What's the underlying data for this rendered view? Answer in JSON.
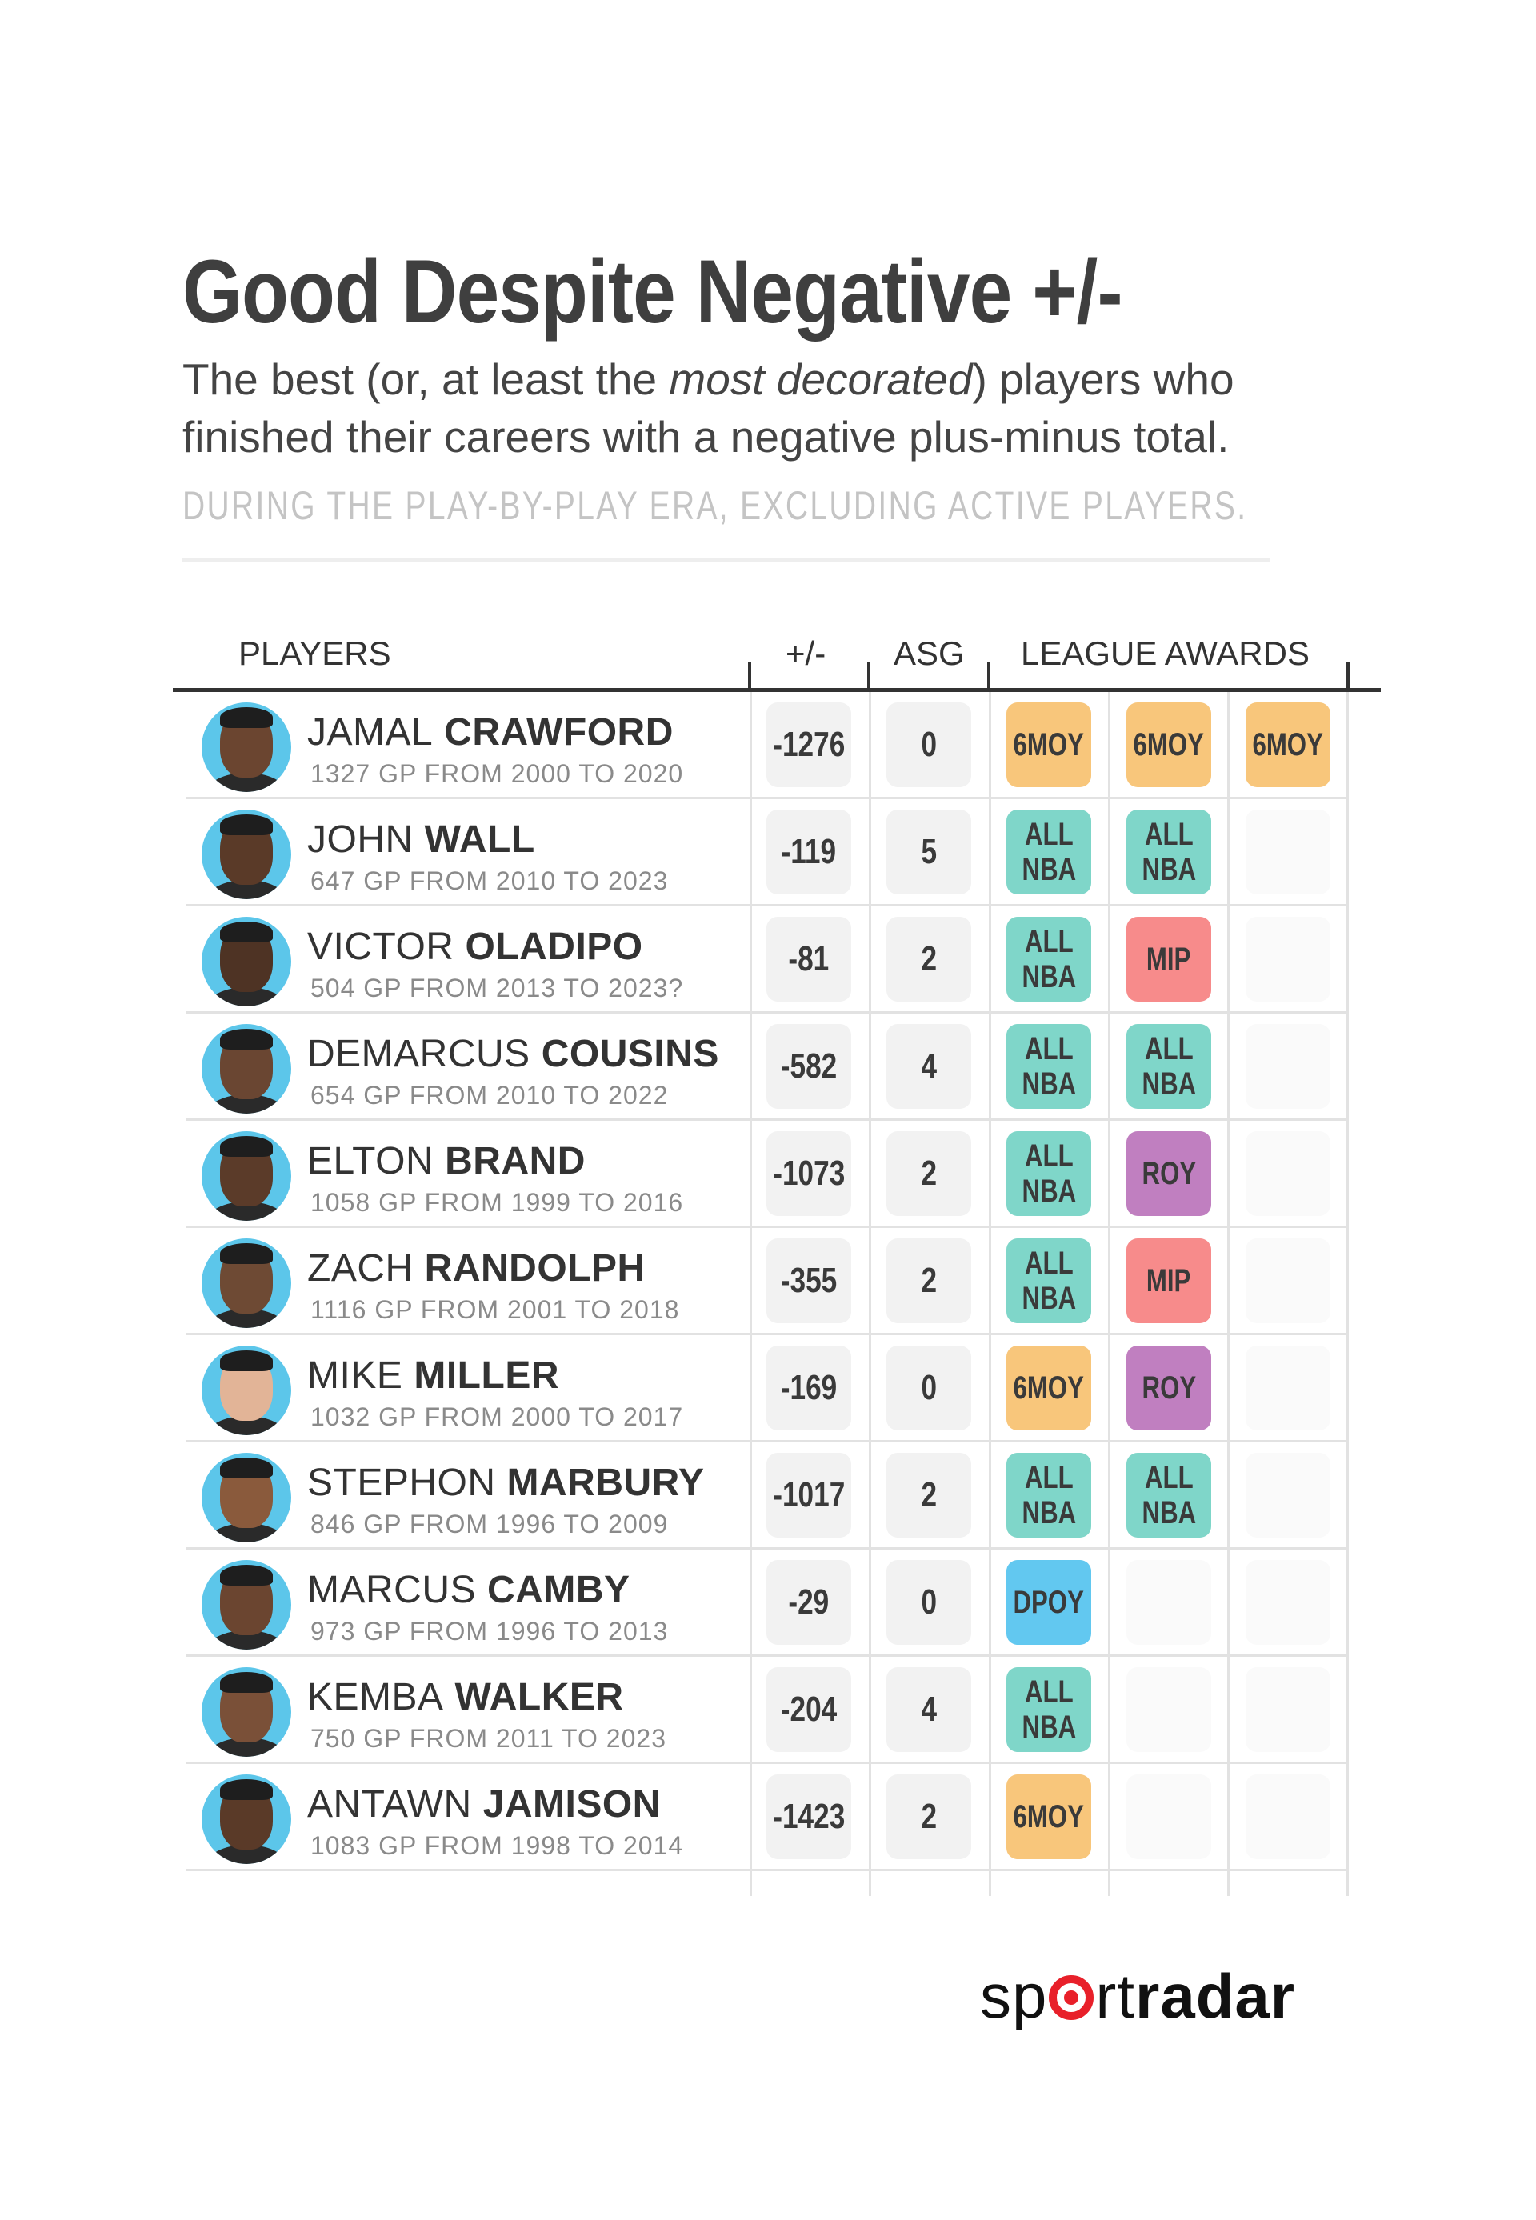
{
  "title": "Good Despite Negative +/-",
  "subtitle": {
    "before": "The best (or, at least the ",
    "emph": "most decorated",
    "after": ") players who finished their careers with a negative plus-minus total."
  },
  "note": "DURING THE PLAY-BY-PLAY ERA, EXCLUDING ACTIVE PLAYERS.",
  "headers": {
    "players": "PLAYERS",
    "pm": "+/-",
    "asg": "ASG",
    "awards": "LEAGUE AWARDS"
  },
  "award_colors": {
    "6MOY": "#f8c67b",
    "ALL NBA": "#7fd6c9",
    "MIP": "#f78b8b",
    "ROY": "#c07fc0",
    "DPOY": "#62c8f0"
  },
  "players": [
    {
      "first": "JAMAL",
      "last": "CRAWFORD",
      "info": "1327 GP FROM 2000 TO 2020",
      "pm": "-1276",
      "asg": "0",
      "awards": [
        "6MOY",
        "6MOY",
        "6MOY"
      ]
    },
    {
      "first": "JOHN",
      "last": "WALL",
      "info": "647 GP FROM 2010 TO 2023",
      "pm": "-119",
      "asg": "5",
      "awards": [
        "ALL NBA",
        "ALL NBA"
      ]
    },
    {
      "first": "VICTOR",
      "last": "OLADIPO",
      "info": "504 GP FROM 2013 TO 2023?",
      "pm": "-81",
      "asg": "2",
      "awards": [
        "ALL NBA",
        "MIP"
      ]
    },
    {
      "first": "DEMARCUS",
      "last": "COUSINS",
      "info": "654 GP FROM 2010 TO 2022",
      "pm": "-582",
      "asg": "4",
      "awards": [
        "ALL NBA",
        "ALL NBA"
      ]
    },
    {
      "first": "ELTON",
      "last": "BRAND",
      "info": "1058 GP FROM 1999 TO 2016",
      "pm": "-1073",
      "asg": "2",
      "awards": [
        "ALL NBA",
        "ROY"
      ]
    },
    {
      "first": "ZACH",
      "last": "RANDOLPH",
      "info": "1116 GP FROM 2001 TO 2018",
      "pm": "-355",
      "asg": "2",
      "awards": [
        "ALL NBA",
        "MIP"
      ]
    },
    {
      "first": "MIKE",
      "last": "MILLER",
      "info": "1032 GP FROM 2000 TO 2017",
      "pm": "-169",
      "asg": "0",
      "awards": [
        "6MOY",
        "ROY"
      ]
    },
    {
      "first": "STEPHON",
      "last": "MARBURY",
      "info": "846 GP FROM 1996 TO 2009",
      "pm": "-1017",
      "asg": "2",
      "awards": [
        "ALL NBA",
        "ALL NBA"
      ]
    },
    {
      "first": "MARCUS",
      "last": "CAMBY",
      "info": "973 GP FROM 1996 TO 2013",
      "pm": "-29",
      "asg": "0",
      "awards": [
        "DPOY"
      ]
    },
    {
      "first": "KEMBA",
      "last": "WALKER",
      "info": "750 GP FROM 2011 TO 2023",
      "pm": "-204",
      "asg": "4",
      "awards": [
        "ALL NBA"
      ]
    },
    {
      "first": "ANTAWN",
      "last": "JAMISON",
      "info": "1083 GP FROM 1998 TO 2014",
      "pm": "-1423",
      "asg": "2",
      "awards": [
        "6MOY"
      ]
    }
  ],
  "logo": {
    "part1": "sp",
    "part2": "rt",
    "part3": "radar"
  }
}
